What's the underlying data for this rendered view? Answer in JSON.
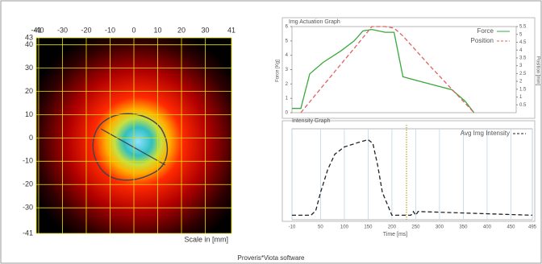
{
  "chart_data": [
    {
      "type": "heatmap",
      "xlabel": "Scale in [mm]",
      "xlim": [
        -41,
        41
      ],
      "xticks": [
        -41,
        -40,
        -30,
        -20,
        -10,
        0,
        10,
        20,
        30,
        41
      ],
      "ylim": [
        -41,
        43
      ],
      "yticks": [
        43,
        40,
        30,
        20,
        10,
        0,
        -10,
        -20,
        -30,
        -41
      ],
      "grid": true,
      "grid_color": "#e8e000"
    },
    {
      "type": "line",
      "title": "Img Actuation Graph",
      "ylabel": "Force [Kg]",
      "y2label": "Position [mm]",
      "x": [
        -10,
        10,
        30,
        60,
        100,
        130,
        150,
        170,
        200,
        220,
        240,
        300,
        350,
        380,
        400,
        495
      ],
      "xlim": [
        -10,
        495
      ],
      "ylim": [
        0,
        6
      ],
      "yticks": [
        0,
        1,
        2,
        3,
        4,
        5,
        6
      ],
      "y2lim": [
        0,
        5.5
      ],
      "y2ticks": [
        0.5,
        1,
        1.5,
        2,
        2.5,
        3,
        3.5,
        4,
        4.5,
        5,
        5.5
      ],
      "legend": "upper right",
      "series": [
        {
          "name": "Force",
          "color": "#3aa83a",
          "values": [
            0.3,
            0.3,
            2.7,
            3.5,
            4.3,
            5.0,
            5.7,
            5.8,
            5.6,
            5.6,
            2.5,
            2.0,
            1.6,
            0.8,
            0,
            null
          ]
        },
        {
          "name": "Position",
          "color": "#e06060",
          "axis": "y2",
          "dashed": true,
          "values": [
            null,
            0,
            0.69,
            1.72,
            3.09,
            4.1,
            4.8,
            5.5,
            5.5,
            5.4,
            4.9,
            3.0,
            1.5,
            0.6,
            0,
            null
          ]
        }
      ]
    },
    {
      "type": "line",
      "title": "Intensity Graph",
      "xlabel": "Time [ms]",
      "x": [
        -10,
        30,
        40,
        50,
        65,
        80,
        100,
        130,
        150,
        160,
        170,
        180,
        200,
        230,
        240,
        245,
        250,
        255,
        495
      ],
      "xlim": [
        -10,
        495
      ],
      "xticks": [
        -10,
        50,
        100,
        150,
        200,
        250,
        300,
        350,
        400,
        450,
        495
      ],
      "ylim": [
        0,
        1
      ],
      "legend": "upper right",
      "series": [
        {
          "name": "Avg Img Intensity",
          "color": "#222222",
          "dashed": true,
          "values": [
            0.05,
            0.05,
            0.1,
            0.3,
            0.55,
            0.72,
            0.8,
            0.85,
            0.88,
            0.84,
            0.6,
            0.3,
            0.05,
            0.05,
            0.05,
            0.09,
            0.05,
            0.09,
            0.05
          ]
        }
      ]
    }
  ],
  "footer": "Proveris*Viota software"
}
